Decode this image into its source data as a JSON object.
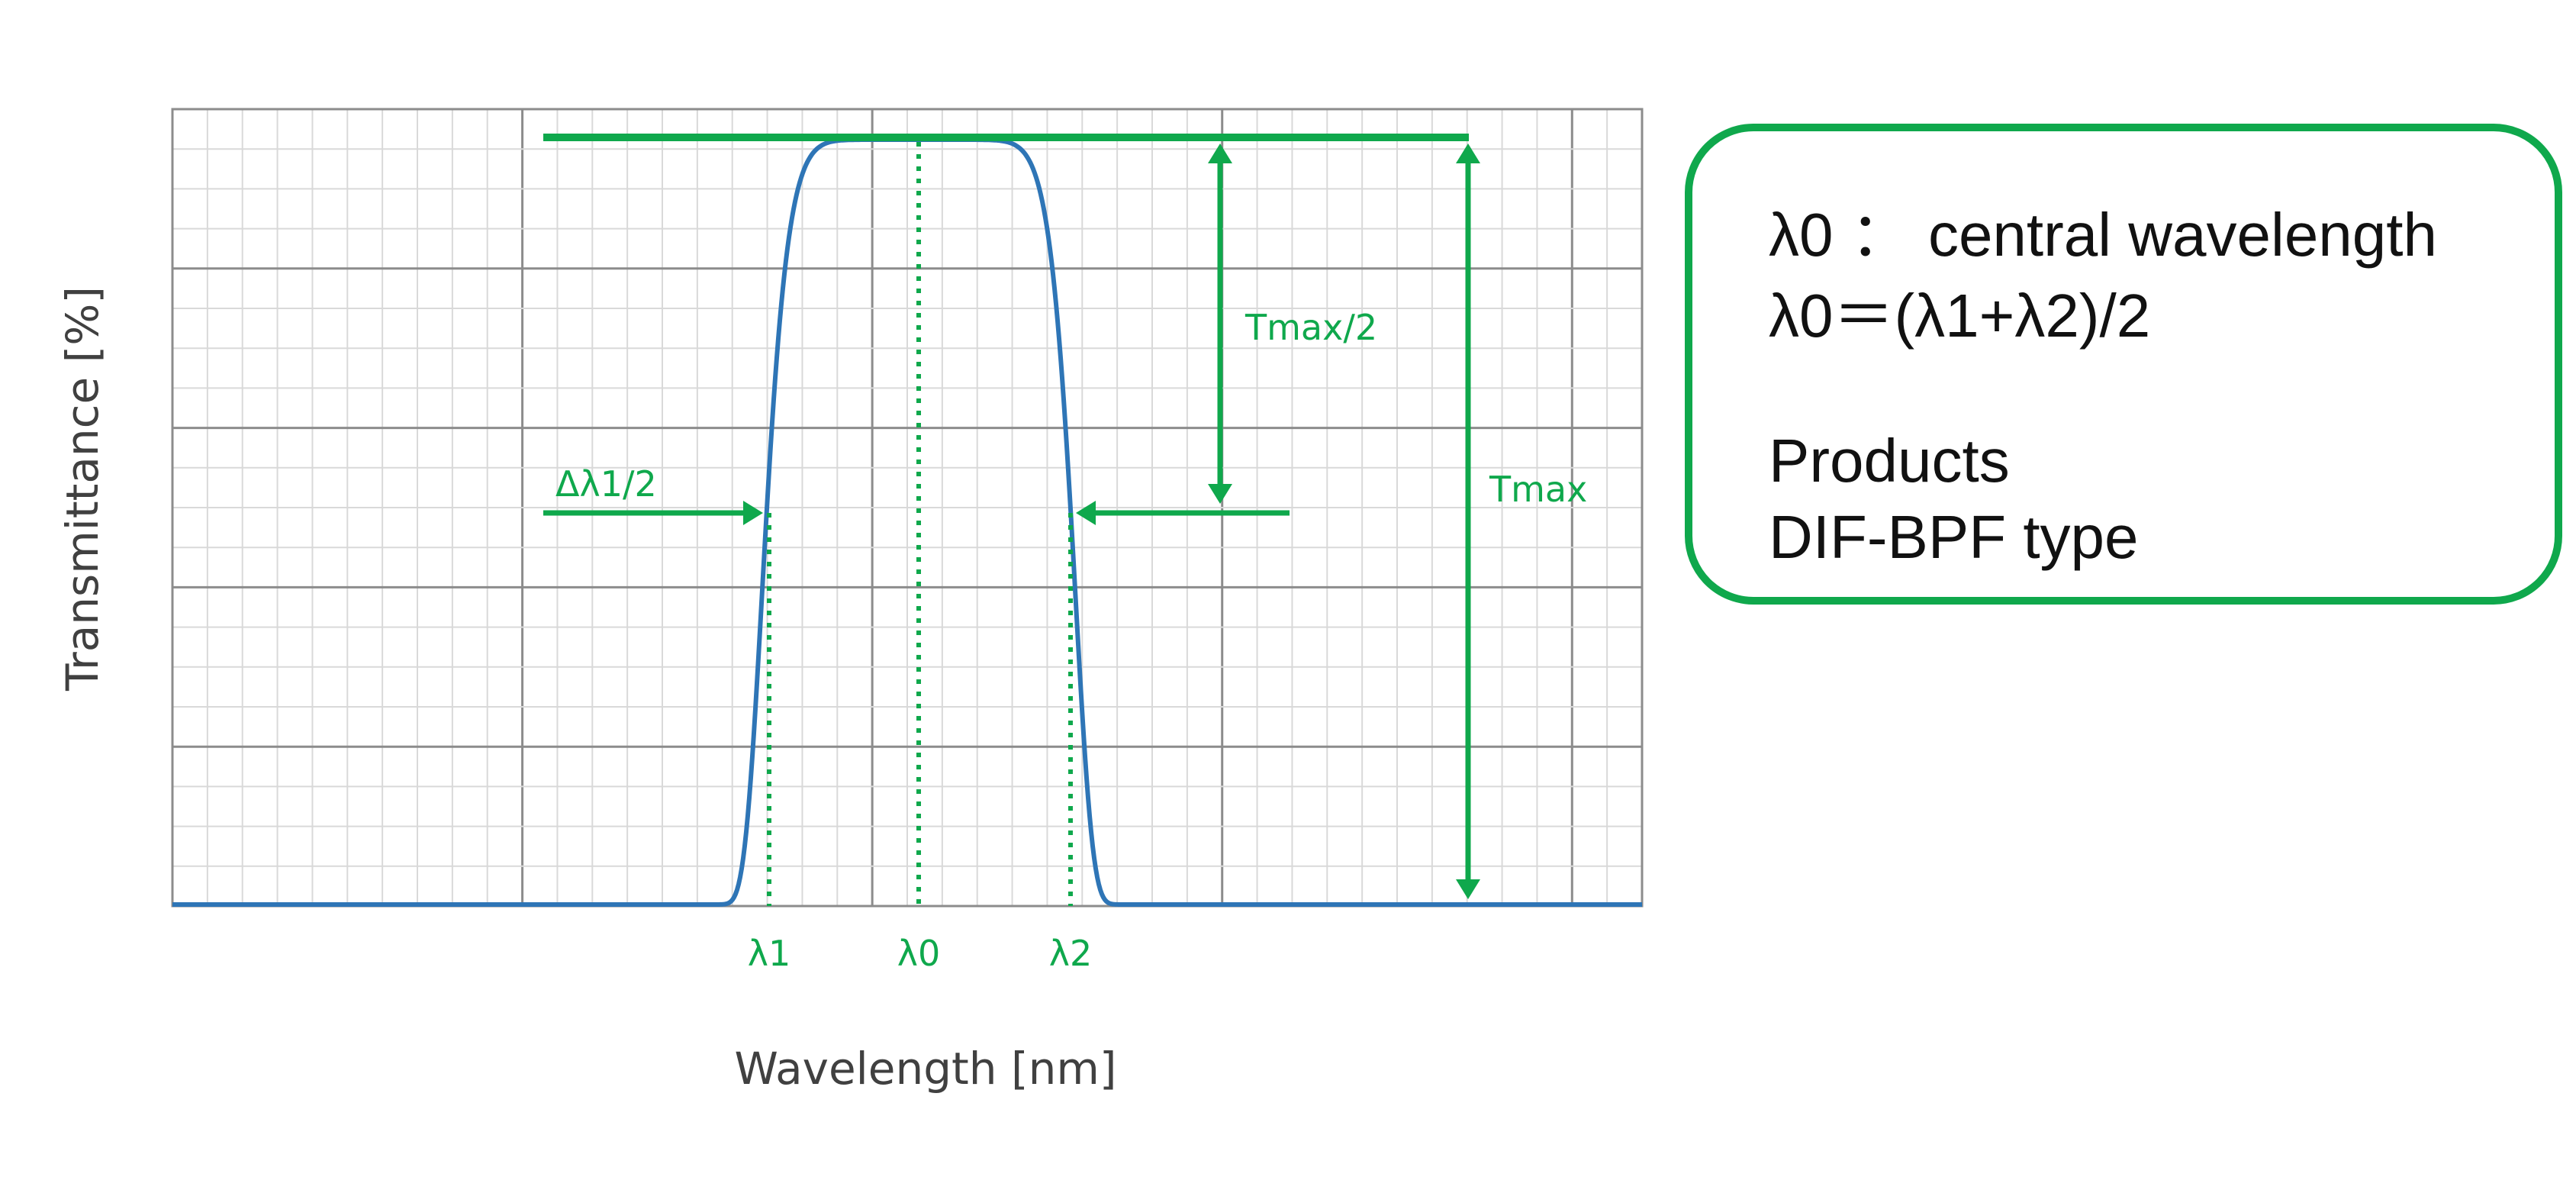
{
  "chart_data": {
    "type": "line",
    "title": "",
    "xlabel": "Wavelength [nm]",
    "ylabel": "Transmittance [%]",
    "grid": true,
    "x_ticks_labeled": [
      "λ1",
      "λ0",
      "λ2"
    ],
    "series": [
      {
        "values_shape": "band-pass transmission curve: ~0 outside the pass band, steep rise near λ1, flat top at Tmax around λ0, steep fall near λ2",
        "color": "#2e75b6"
      }
    ],
    "annotations": {
      "tmax": "Tmax",
      "tmax_half": "Tmax/2",
      "fwhm": "Δλ1/2"
    }
  },
  "info_box": {
    "line1": "λ0 ： central wavelength",
    "line2": "λ0＝(λ1+λ2)/2",
    "line3": "Products",
    "line4": "DIF-BPF type"
  },
  "colors": {
    "annotation_green": "#0fa84c",
    "curve_blue": "#2e75b6",
    "grid_minor": "#d9d9d9",
    "grid_major": "#8c8c8c"
  }
}
